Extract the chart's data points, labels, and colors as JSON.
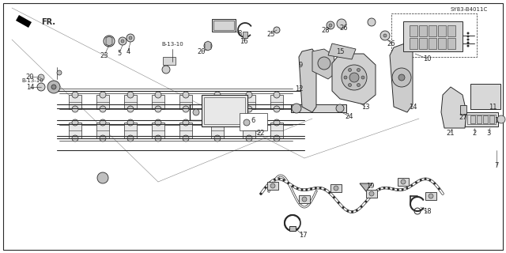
{
  "bg_color": "#ffffff",
  "outer_bg": "#f5f3ef",
  "line_color": "#2a2a2a",
  "diagram_code": "SY83-B4011C",
  "fr_label": "FR.",
  "title_color": "#000000"
}
